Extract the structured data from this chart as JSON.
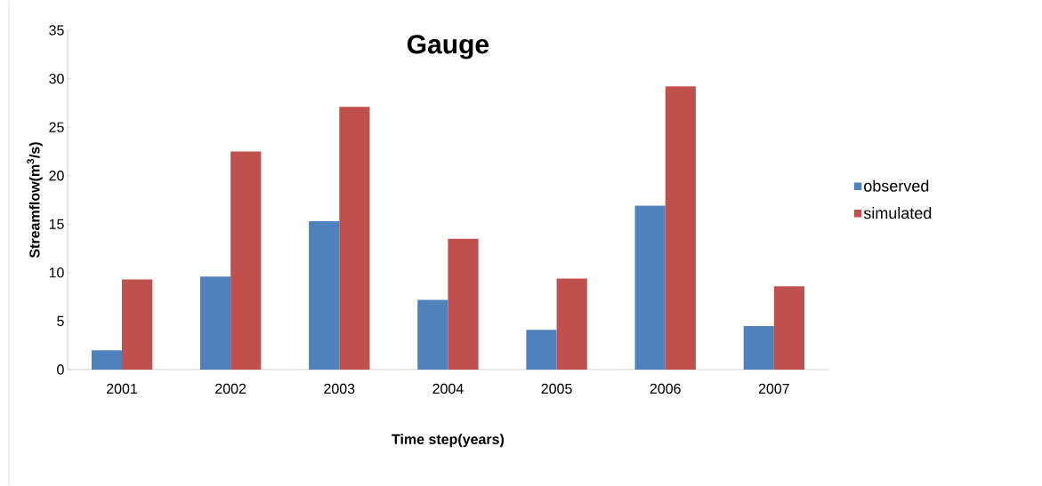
{
  "chart_data": {
    "type": "bar",
    "title": "Gauge",
    "xlabel": "Time step(years)",
    "ylabel": "Streamflow(m$^{3}$/s)",
    "categories": [
      "2001",
      "2002",
      "2003",
      "2004",
      "2005",
      "2006",
      "2007"
    ],
    "series": [
      {
        "name": "observed",
        "color": "#4f81bd",
        "values": [
          2.0,
          9.6,
          15.3,
          7.2,
          4.1,
          16.9,
          4.5
        ]
      },
      {
        "name": "simulated",
        "color": "#c0504d",
        "values": [
          9.3,
          22.5,
          27.1,
          13.5,
          9.4,
          29.2,
          8.6
        ]
      }
    ],
    "ylim": [
      0,
      35
    ],
    "yticks": [
      0,
      5,
      10,
      15,
      20,
      25,
      30,
      35
    ],
    "legend": "right"
  }
}
